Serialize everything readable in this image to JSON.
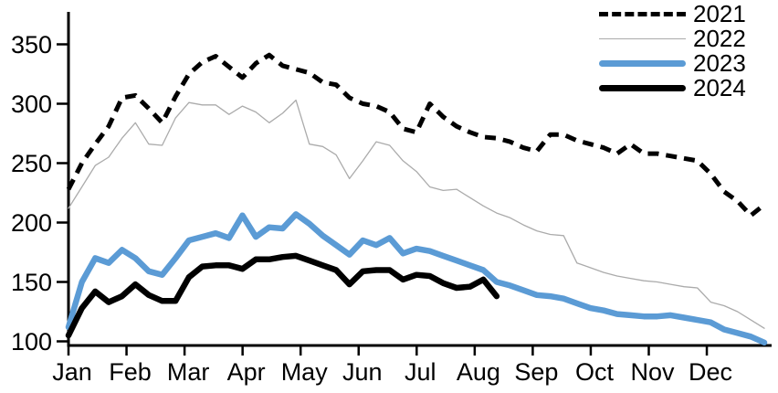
{
  "chart_data": {
    "type": "line",
    "title": "",
    "x_axis": {
      "tick_labels": [
        "Jan",
        "Feb",
        "Mar",
        "Apr",
        "May",
        "Jun",
        "Jul",
        "Aug",
        "Sep",
        "Oct",
        "Nov",
        "Dec"
      ],
      "unit": "weekly data points across one year"
    },
    "y_axis": {
      "ticks": [
        100,
        150,
        200,
        250,
        300,
        350
      ],
      "range": [
        100,
        355
      ],
      "grid": "off"
    },
    "legend": {
      "position": "top-right",
      "entries": [
        "2021",
        "2022",
        "2023",
        "2024"
      ]
    },
    "series": [
      {
        "name": "2021",
        "color": "#000000",
        "style": "dashed",
        "width": 5,
        "values": [
          228,
          250,
          266,
          281,
          305,
          307,
          296,
          284,
          306,
          325,
          335,
          340,
          331,
          322,
          334,
          341,
          332,
          329,
          326,
          318,
          316,
          305,
          300,
          298,
          293,
          279,
          276,
          300,
          289,
          281,
          276,
          272,
          271,
          268,
          263,
          260,
          274,
          274,
          269,
          266,
          263,
          258,
          266,
          258,
          258,
          256,
          254,
          252,
          241,
          226,
          218,
          206,
          215
        ]
      },
      {
        "name": "2022",
        "color": "#ABABAB",
        "style": "solid",
        "width": 1.3,
        "values": [
          212,
          230,
          248,
          255,
          271,
          284,
          266,
          265,
          288,
          301,
          299,
          299,
          291,
          298,
          293,
          284,
          292,
          303,
          266,
          264,
          257,
          237,
          252,
          268,
          265,
          252,
          243,
          230,
          227,
          228,
          221,
          214,
          208,
          204,
          198,
          193,
          190,
          189,
          166,
          162,
          158,
          155,
          153,
          151,
          150,
          148,
          146,
          145,
          133,
          130,
          125,
          118,
          111
        ]
      },
      {
        "name": "2023",
        "color": "#5B9BD5",
        "style": "solid",
        "width": 6.5,
        "values": [
          112,
          150,
          170,
          166,
          177,
          170,
          159,
          156,
          170,
          185,
          188,
          191,
          187,
          206,
          188,
          196,
          195,
          207,
          199,
          189,
          181,
          173,
          185,
          181,
          187,
          174,
          178,
          176,
          172,
          168,
          164,
          160,
          150,
          147,
          143,
          139,
          138,
          136,
          132,
          128,
          126,
          123,
          122,
          121,
          121,
          122,
          120,
          118,
          116,
          110,
          107,
          104,
          99
        ]
      },
      {
        "name": "2024",
        "color": "#000000",
        "style": "solid",
        "width": 6.5,
        "values": [
          105,
          128,
          142,
          133,
          138,
          148,
          139,
          134,
          134,
          154,
          163,
          164,
          164,
          161,
          169,
          169,
          171,
          172,
          168,
          164,
          160,
          148,
          159,
          160,
          160,
          152,
          156,
          155,
          149,
          145,
          146,
          152,
          138
        ]
      }
    ]
  }
}
